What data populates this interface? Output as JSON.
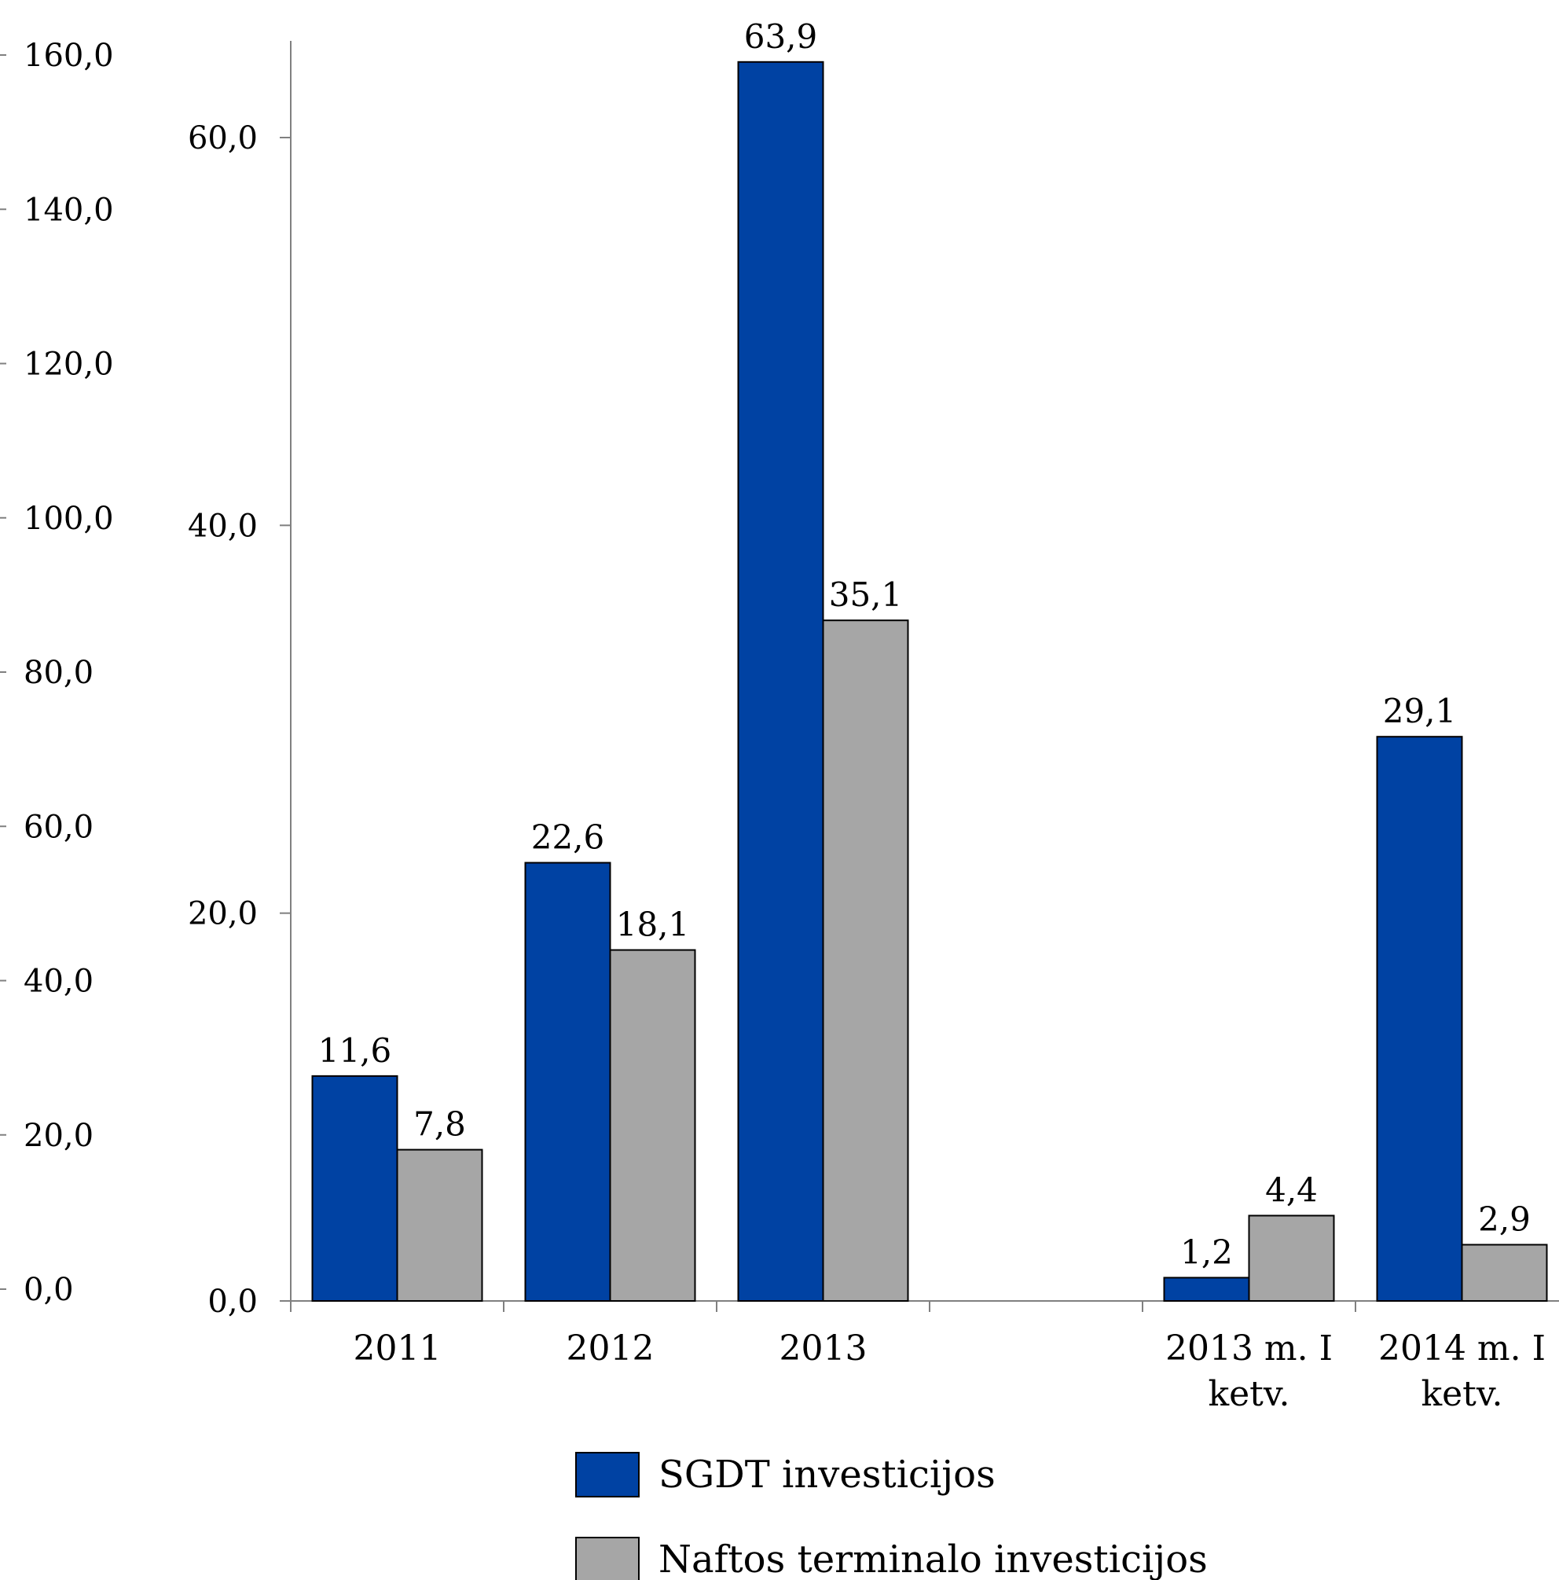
{
  "chart_data": {
    "type": "bar",
    "title": "",
    "xlabel": "",
    "ylabel": "",
    "categories": [
      [
        "2011"
      ],
      [
        "2012"
      ],
      [
        "2013"
      ],
      [
        ""
      ],
      [
        "2013 m. I",
        "ketv."
      ],
      [
        "2014 m. I",
        "ketv."
      ]
    ],
    "series": [
      {
        "name": "SGDT investicijos",
        "color": "#0042A3",
        "values": [
          11.6,
          22.6,
          63.9,
          null,
          1.2,
          29.1
        ],
        "labels": [
          "11,6",
          "22,6",
          "63,9",
          "",
          "1,2",
          "29,1"
        ]
      },
      {
        "name": "Naftos terminalo investicijos",
        "color": "#A6A6A6",
        "values": [
          7.8,
          18.1,
          35.1,
          null,
          4.4,
          2.9
        ],
        "labels": [
          "7,8",
          "18,1",
          "35,1",
          "",
          "4,4",
          "2,9"
        ]
      }
    ],
    "primary_axis": {
      "ylim": [
        0,
        65
      ],
      "ticks": [
        0,
        20,
        40,
        60
      ],
      "tick_labels": [
        "0,0",
        "20,0",
        "40,0",
        "60,0"
      ]
    },
    "secondary_axis": {
      "ylim": [
        0,
        160
      ],
      "ticks": [
        0,
        20,
        40,
        60,
        80,
        100,
        120,
        140,
        160
      ],
      "tick_labels": [
        "0,0",
        "20,0",
        "40,0",
        "60,0",
        "80,0",
        "100,0",
        "120,0",
        "140,0",
        "160,0"
      ]
    },
    "grid": false,
    "legend_position": "bottom"
  }
}
